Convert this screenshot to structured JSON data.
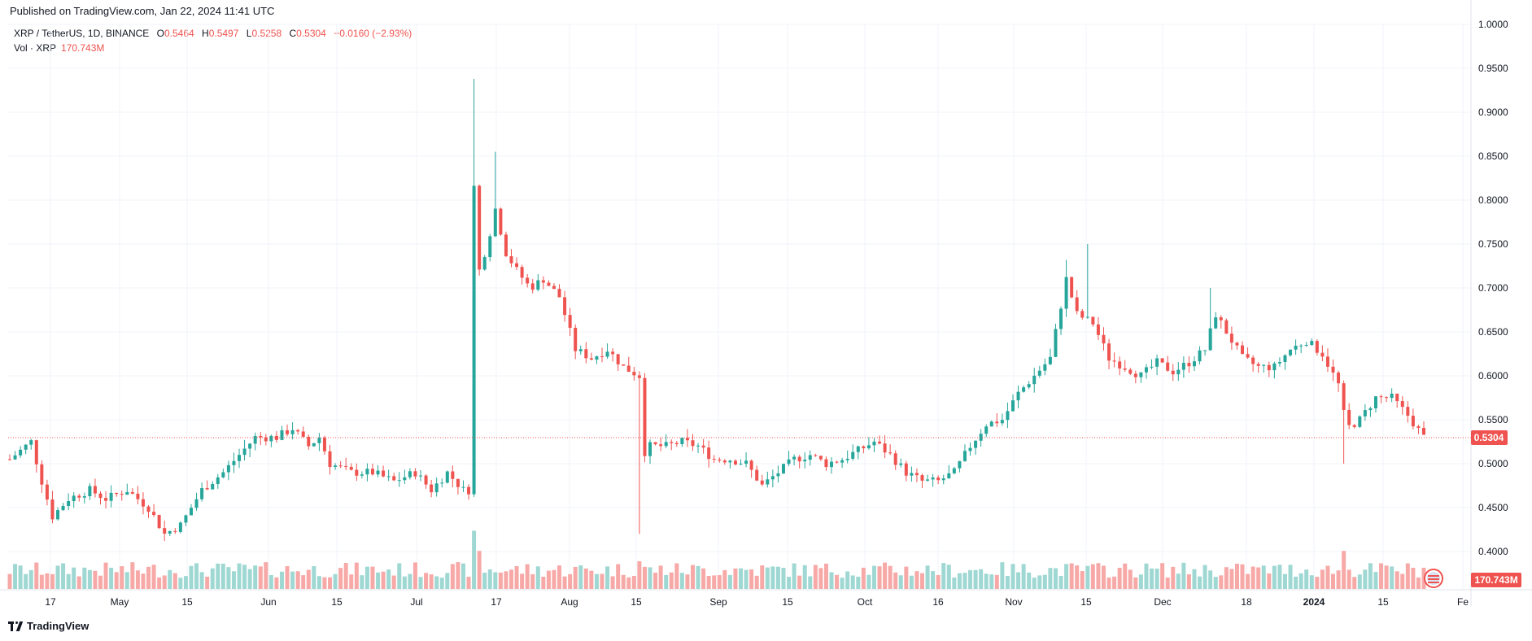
{
  "published": "Published on TradingView.com, Jan 22, 2024 11:41 UTC",
  "symbol_line": {
    "symbol": "XRP / TetherUS, 1D, BINANCE",
    "o_label": "O",
    "o": "0.5464",
    "h_label": "H",
    "h": "0.5497",
    "l_label": "L",
    "l": "0.5258",
    "c_label": "C",
    "c": "0.5304",
    "change": "−0.0160 (−2.93%)"
  },
  "volume_line": {
    "label": "Vol · XRP",
    "value": "170.743M"
  },
  "brand": "TradingView",
  "colors": {
    "up": "#26a69a",
    "down": "#ef5350",
    "up_vol": "#9fd8d3",
    "down_vol": "#f7a9a7",
    "grid": "#f0f3fa",
    "axis_text": "#131722"
  },
  "chart_data": {
    "type": "candlestick",
    "title": "XRP / TetherUS, 1D, BINANCE",
    "x_ticks": [
      "17",
      "May",
      "15",
      "Jun",
      "15",
      "Jul",
      "17",
      "Aug",
      "15",
      "Sep",
      "15",
      "Oct",
      "16",
      "Nov",
      "15",
      "Dec",
      "18",
      "2024",
      "15",
      "Fe"
    ],
    "y_ticks": [
      "1.0000",
      "0.9500",
      "0.9000",
      "0.8500",
      "0.8000",
      "0.7500",
      "0.7000",
      "0.6500",
      "0.6000",
      "0.5500",
      "0.5000",
      "0.4500",
      "0.4000"
    ],
    "ylim": [
      0.38,
      1.0
    ],
    "last_price_label": "0.5304",
    "last_volume_label": "170.743M",
    "key_points": [
      {
        "date": "Apr 17",
        "close": 0.52
      },
      {
        "date": "May 10",
        "close": 0.42
      },
      {
        "date": "Jun 13",
        "close": 0.53
      },
      {
        "date": "Jul 12",
        "close": 0.47
      },
      {
        "date": "Jul 13",
        "high": 0.938,
        "close": 0.815
      },
      {
        "date": "Jul 20",
        "high": 0.855,
        "close": 0.79
      },
      {
        "date": "Aug 17",
        "low": 0.42,
        "close": 0.51
      },
      {
        "date": "Sep 11",
        "close": 0.475
      },
      {
        "date": "Oct 12",
        "close": 0.48
      },
      {
        "date": "Nov 6",
        "high": 0.732,
        "close": 0.71
      },
      {
        "date": "Nov 13",
        "high": 0.75,
        "close": 0.67
      },
      {
        "date": "Dec 9",
        "high": 0.7,
        "close": 0.67
      },
      {
        "date": "Jan 3",
        "low": 0.5,
        "close": 0.58
      },
      {
        "date": "Jan 22",
        "open": 0.5464,
        "high": 0.5497,
        "low": 0.5258,
        "close": 0.5304
      }
    ]
  }
}
